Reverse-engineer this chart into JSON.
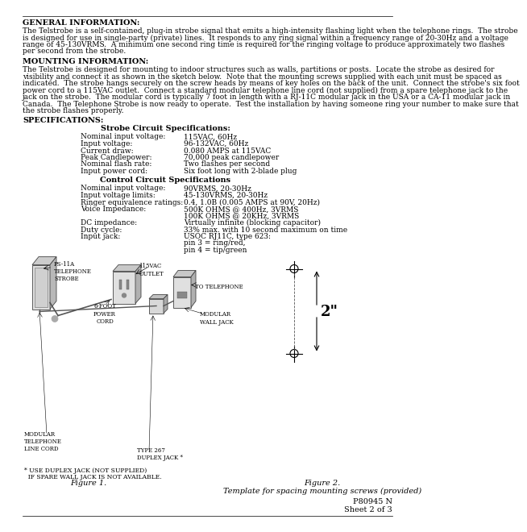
{
  "background_color": "#ffffff",
  "text_color": "#000000",
  "general_info_heading": "GENERAL INFORMATION:",
  "general_info_body": [
    "The Telstrobe is a self-contained, plug-in strobe signal that emits a high-intensity flashing light when the telephone rings.  The strobe",
    "is designed for use in single-party (private) lines.  It responds to any ring signal within a frequency range of 20-30Hz and a voltage",
    "range of 45-130VRMS.  A minimum one second ring time is required for the ringing voltage to produce approximately two flashes",
    "per second from the strobe."
  ],
  "mounting_heading": "MOUNTING INFORMATION:",
  "mounting_body": [
    "The Telstrobe is designed for mounting to indoor structures such as walls, partitions or posts.  Locate the strobe as desired for",
    "visibility and connect it as shown in the sketch below.  Note that the mounting screws supplied with each unit must be spaced as",
    "indicated.  The strobe hangs securely on the screw heads by means of key holes on the back of the unit.  Connect the strobe's six foot",
    "power cord to a 115VAC outlet.  Connect a standard modular telephone line cord (not supplied) from a spare telephone jack to the",
    "jack on the strobe.  The modular cord is typically 7 foot in length with a RJ-11C modular jack in the USA or a CA-11 modular jack in",
    "Canada.  The Telephone Strobe is now ready to operate.  Test the installation by having someone ring your number to make sure that",
    "the strobe flashes properly."
  ],
  "specs_heading": "SPECIFICATIONS:",
  "strobe_subheading": "Strobe Circuit Specifications:",
  "strobe_specs": [
    [
      "Nominal input voltage:",
      "115VAC, 60Hz"
    ],
    [
      "Input voltage:",
      "96-132VAC, 60Hz"
    ],
    [
      "Current draw:",
      "0.080 AMPS at 115VAC"
    ],
    [
      "Peak Candlepower:",
      "70,000 peak candlepower"
    ],
    [
      "Nominal flash rate:",
      "Two flashes per second"
    ],
    [
      "Input power cord:",
      "Six foot long with 2-blade plug"
    ]
  ],
  "control_subheading": "Control Circuit Specifications",
  "control_specs": [
    [
      "Nominal input voltage:",
      "90VRMS, 20-30Hz"
    ],
    [
      "Input voltage limits:",
      "45-130VRMS, 20-30Hz"
    ],
    [
      "Ringer equivalence ratings:",
      "0.4, 1.0B (0.005 AMPS at 90V, 20Hz)"
    ],
    [
      "Voice Impedance:",
      "500K OHMS @ 400Hz, 3VRMS"
    ],
    [
      "",
      "100K OHMS @ 20KHz, 3VRMS"
    ],
    [
      "DC impedance:",
      "Virtually infinite (blocking capacitor)"
    ],
    [
      "Duty cycle:",
      "33% max. with 10 second maximum on time"
    ],
    [
      "Input jack:",
      "USOC RJ11C, type 623:"
    ],
    [
      "",
      "pin 3 = ring/red,"
    ],
    [
      "",
      "pin 4 = tip/green"
    ]
  ],
  "figure1_caption": "Figure 1.",
  "figure2_caption_line1": "Figure 2.",
  "figure2_caption_line2": "Template for spacing mounting screws (provided)",
  "footer_line1": "P80945 N",
  "footer_line2": "Sheet 2 of 3",
  "label_ps11a": "PS-11A\nTELEPHONE\nSTROBE",
  "label_outlet": "115VAC\nOUTLET",
  "label_to_telephone": "TO TELEPHONE",
  "label_power_cord": "6-FOOT\nPOWER\nCORD",
  "label_modular_line": "MODULAR\nTELEPHONE\nLINE CORD",
  "label_duplex_jack": "TYPE 267\nDUPLEX JACK *",
  "label_modular_wall": "MODULAR\nWALL JACK",
  "label_note": "* USE DUPLEX JACK (NOT SUPPLIED)",
  "label_note2": "  IF SPARE WALL JACK IS NOT AVAILABLE.",
  "label_dimension": "2\""
}
